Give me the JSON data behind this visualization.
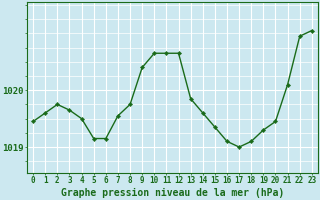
{
  "hours": [
    0,
    1,
    2,
    3,
    4,
    5,
    6,
    7,
    8,
    9,
    10,
    11,
    12,
    13,
    14,
    15,
    16,
    17,
    18,
    19,
    20,
    21,
    22,
    23
  ],
  "pressure": [
    1019.45,
    1019.6,
    1019.75,
    1019.65,
    1019.5,
    1019.15,
    1019.15,
    1019.55,
    1019.75,
    1020.4,
    1020.65,
    1020.65,
    1020.65,
    1019.85,
    1019.6,
    1019.35,
    1019.1,
    1019.0,
    1019.1,
    1019.3,
    1019.45,
    1020.1,
    1020.95,
    1021.05
  ],
  "line_color": "#1a6b1a",
  "marker": "D",
  "marker_size": 2.2,
  "bg_color": "#cce8f0",
  "grid_color": "#ffffff",
  "tick_color": "#1a6b1a",
  "label_color": "#1a6b1a",
  "xlabel": "Graphe pression niveau de la mer (hPa)",
  "xlabel_fontsize": 7,
  "ylim": [
    1018.55,
    1021.55
  ],
  "xlim": [
    -0.5,
    23.5
  ],
  "yticks": [
    1019.0,
    1020.0
  ],
  "xtick_fontsize": 5.5,
  "ytick_fontsize": 6.5,
  "linewidth": 1.0
}
